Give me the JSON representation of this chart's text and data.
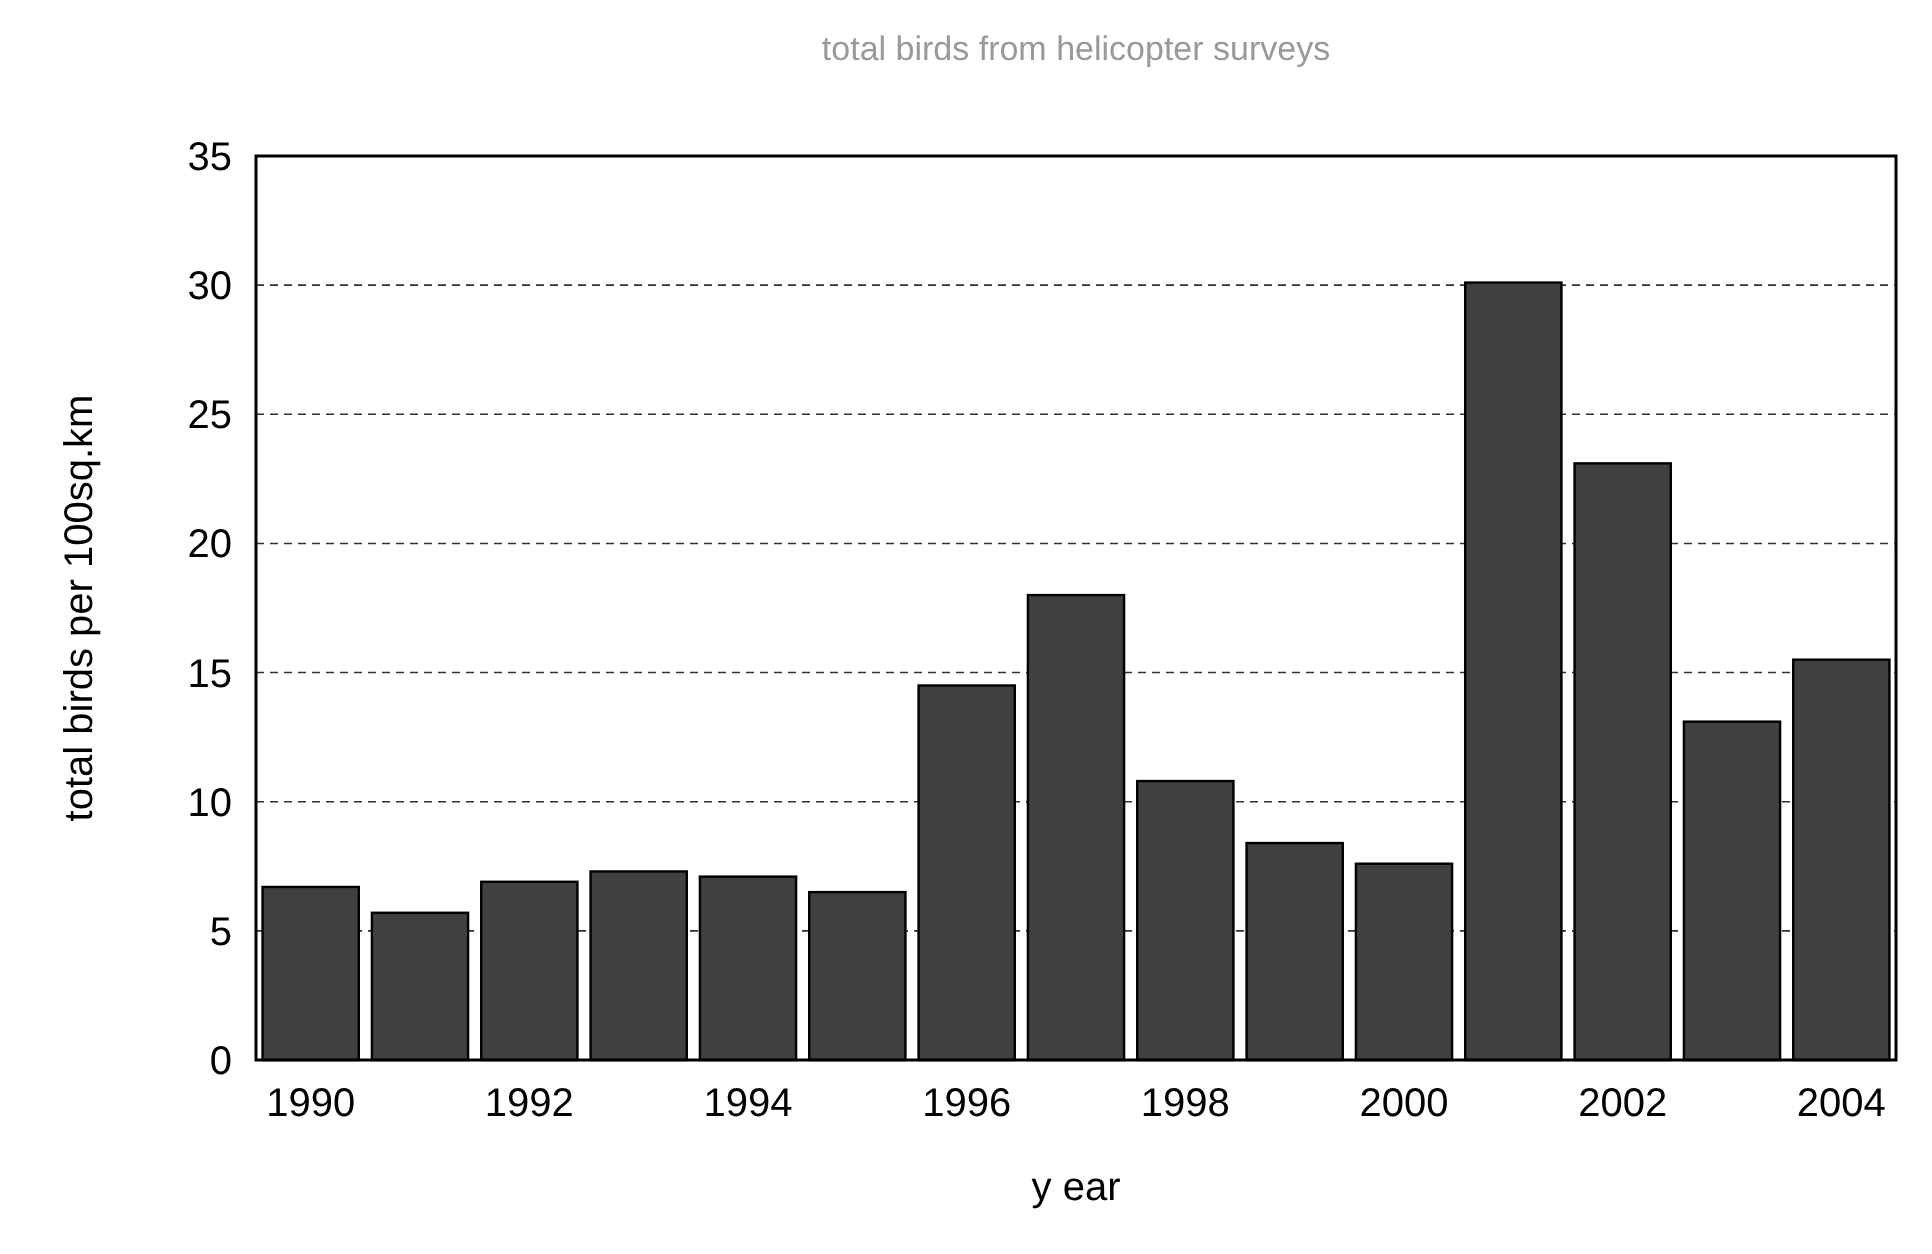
{
  "chart_data": {
    "type": "bar",
    "title": "total birds from helicopter surveys",
    "xlabel": "y ear",
    "ylabel": "total birds per 100sq.km",
    "categories": [
      "1990",
      null,
      "1992",
      null,
      "1994",
      null,
      "1996",
      null,
      "1998",
      null,
      "2000",
      null,
      "2002",
      null,
      "2004"
    ],
    "values": [
      6.7,
      5.7,
      6.9,
      7.3,
      7.1,
      6.5,
      14.5,
      18.0,
      10.8,
      8.4,
      7.6,
      30.1,
      23.1,
      13.1,
      15.5
    ],
    "color": "#404040",
    "ylim": [
      0,
      35
    ],
    "yticks": [
      0,
      5,
      10,
      15,
      20,
      25,
      30,
      35
    ],
    "grid": "y"
  }
}
